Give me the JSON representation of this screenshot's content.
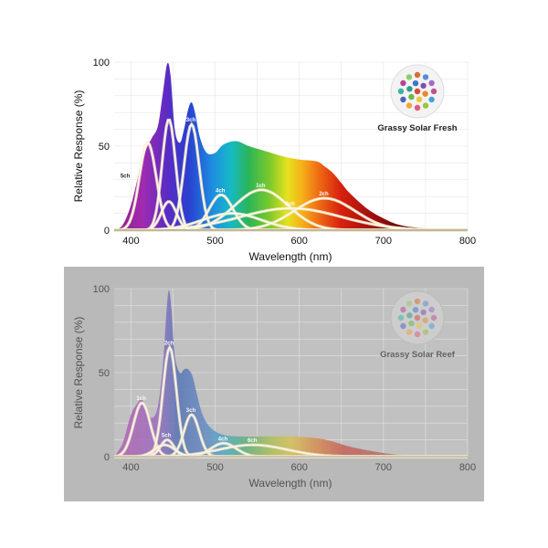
{
  "chart_data": [
    {
      "type": "area",
      "title": "Grassy Solar Fresh",
      "xlabel": "Wavelength (nm)",
      "ylabel": "Relative Response (%)",
      "xlim": [
        380,
        800
      ],
      "ylim": [
        0,
        100
      ],
      "xticks": [
        "400",
        "500",
        "600",
        "700",
        "800"
      ],
      "yticks": [
        "0",
        "50",
        "100"
      ],
      "grid": true,
      "spectrum": {
        "x": [
          380,
          390,
          400,
          410,
          418,
          425,
          432,
          438,
          443,
          447,
          452,
          458,
          463,
          468,
          472,
          476,
          482,
          490,
          500,
          510,
          525,
          540,
          560,
          580,
          600,
          620,
          630,
          640,
          650,
          660,
          680,
          700,
          720,
          750,
          780,
          800
        ],
        "y": [
          0,
          3,
          15,
          35,
          48,
          55,
          62,
          82,
          99,
          92,
          60,
          52,
          60,
          72,
          76,
          70,
          55,
          46,
          46,
          51,
          53,
          50,
          47,
          44,
          42,
          41,
          38,
          34,
          28,
          22,
          13,
          7,
          3,
          1,
          0.3,
          0
        ]
      },
      "channels": [
        {
          "label": "5ch",
          "center": 420,
          "peak": 52,
          "width": 10
        },
        {
          "label": "",
          "center": 445,
          "peak": 66,
          "width": 8
        },
        {
          "label": "3ch",
          "center": 472,
          "peak": 63,
          "width": 9
        },
        {
          "label": "4ch",
          "center": 507,
          "peak": 21,
          "width": 14
        },
        {
          "label": "1ch",
          "center": 555,
          "peak": 24,
          "width": 32
        },
        {
          "label": "2ch",
          "center": 630,
          "peak": 19,
          "width": 36
        },
        {
          "label": "6ch",
          "center": 590,
          "peak": 13,
          "width": 60
        },
        {
          "label": "",
          "center": 445,
          "peak": 17,
          "width": 9
        },
        {
          "label": "",
          "center": 520,
          "peak": 10,
          "width": 35
        }
      ]
    },
    {
      "type": "area",
      "title": "Grassy Solar Reef",
      "xlabel": "Wavelength (nm)",
      "ylabel": "Relative Response (%)",
      "xlim": [
        380,
        800
      ],
      "ylim": [
        0,
        100
      ],
      "xticks": [
        "400",
        "500",
        "600",
        "700",
        "800"
      ],
      "yticks": [
        "0",
        "50",
        "100"
      ],
      "grid": true,
      "spectrum": {
        "x": [
          380,
          390,
          400,
          408,
          413,
          418,
          425,
          432,
          438,
          442,
          445,
          448,
          452,
          458,
          463,
          468,
          473,
          478,
          485,
          495,
          510,
          530,
          560,
          590,
          620,
          640,
          660,
          690,
          720,
          760,
          800
        ],
        "y": [
          0,
          8,
          25,
          32,
          34,
          28,
          23,
          30,
          55,
          85,
          99,
          88,
          60,
          50,
          52,
          52,
          48,
          38,
          25,
          17,
          13,
          12,
          12,
          12,
          11,
          9,
          6,
          3,
          1,
          0.3,
          0
        ]
      },
      "channels": [
        {
          "label": "1ch",
          "center": 413,
          "peak": 32,
          "width": 10
        },
        {
          "label": "2ch",
          "center": 446,
          "peak": 65,
          "width": 8
        },
        {
          "label": "3ch",
          "center": 472,
          "peak": 25,
          "width": 9
        },
        {
          "label": "5ch",
          "center": 443,
          "peak": 10,
          "width": 8
        },
        {
          "label": "4ch",
          "center": 510,
          "peak": 8,
          "width": 15
        },
        {
          "label": "6ch",
          "center": 545,
          "peak": 7,
          "width": 40
        },
        {
          "label": "",
          "center": 440,
          "peak": 7,
          "width": 12
        }
      ]
    }
  ],
  "colors": {
    "grid": "#e6e6e6",
    "bottom_panel_bg": "#b9b9b9",
    "channel_curve": "#ffffff"
  },
  "logo_dot_colors": [
    "#d64a3a",
    "#e38b2f",
    "#f0c63c",
    "#6bb84a",
    "#2f9b8f",
    "#3c78c6",
    "#7a4fb0",
    "#c05094",
    "#48a0d8",
    "#9bc43f",
    "#e35a7a",
    "#f2a43a",
    "#4f63b8",
    "#36b6a4",
    "#b5478e",
    "#8ccf6a",
    "#db6e34",
    "#5d8ad6",
    "#a36ac4"
  ]
}
